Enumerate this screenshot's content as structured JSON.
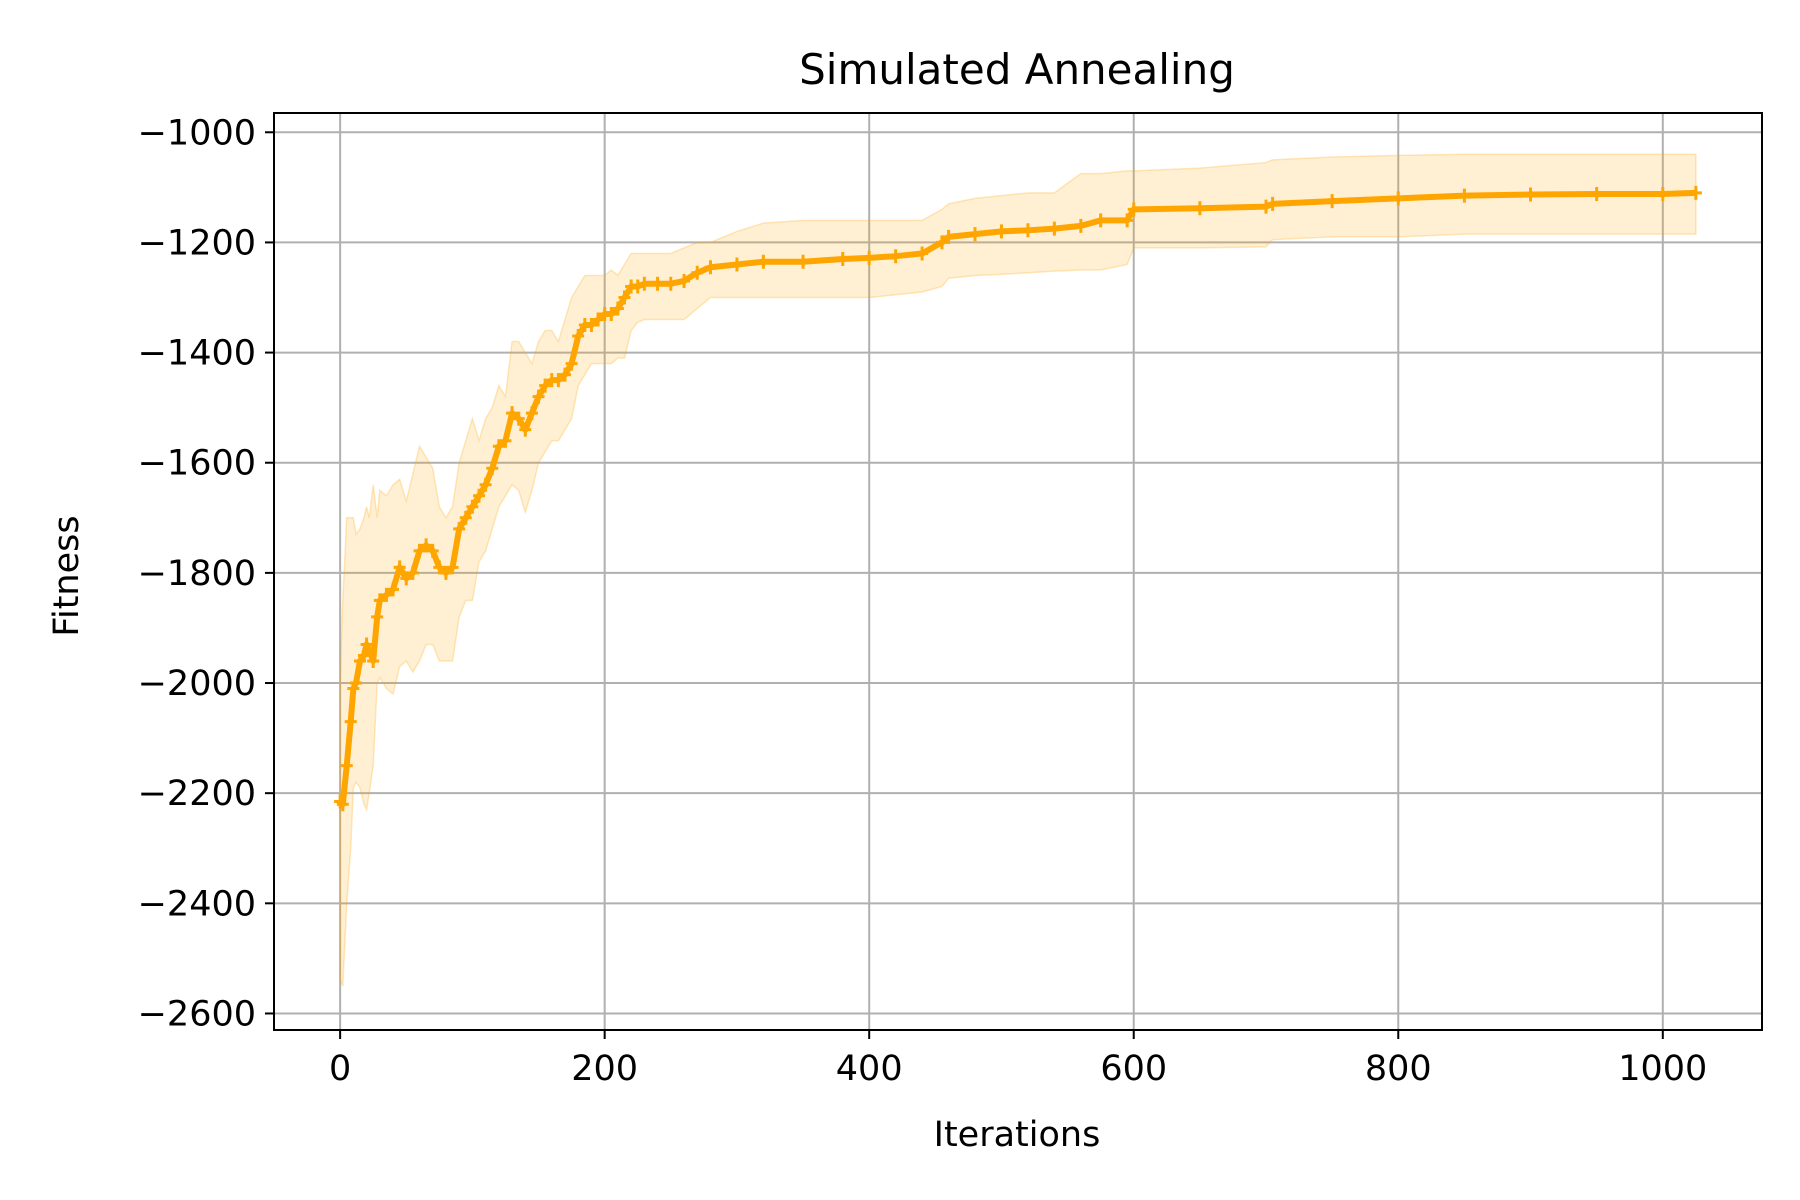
{
  "chart_data": {
    "type": "line",
    "title": "Simulated Annealing",
    "xlabel": "Iterations",
    "ylabel": "Fitness",
    "xlim": [
      -50,
      1075
    ],
    "ylim": [
      -2630,
      -965
    ],
    "xticks": [
      0,
      200,
      400,
      600,
      800,
      1000
    ],
    "yticks": [
      -2600,
      -2400,
      -2200,
      -2000,
      -1800,
      -1600,
      -1400,
      -1200,
      -1000
    ],
    "xtick_labels": [
      "0",
      "200",
      "400",
      "600",
      "800",
      "1000"
    ],
    "ytick_labels": [
      "−2600",
      "−2400",
      "−2200",
      "−2000",
      "−1800",
      "−1600",
      "−1400",
      "−1200",
      "−1000"
    ],
    "grid": true,
    "colors": {
      "line": "#ffa500",
      "band": "#ffa500",
      "grid": "#b0b0b0",
      "axes": "#000000"
    },
    "band_opacity": 0.17,
    "series": [
      {
        "x": [
          0,
          2,
          5,
          8,
          10,
          12,
          15,
          18,
          20,
          22,
          25,
          28,
          30,
          35,
          40,
          45,
          50,
          55,
          60,
          65,
          70,
          75,
          80,
          85,
          90,
          95,
          100,
          105,
          110,
          115,
          120,
          125,
          130,
          135,
          140,
          145,
          150,
          155,
          160,
          165,
          170,
          175,
          180,
          185,
          190,
          195,
          200,
          205,
          210,
          215,
          220,
          225,
          230,
          240,
          250,
          260,
          270,
          280,
          300,
          320,
          350,
          380,
          400,
          420,
          440,
          455,
          460,
          480,
          500,
          520,
          540,
          560,
          575,
          595,
          600,
          650,
          700,
          705,
          750,
          800,
          850,
          900,
          950,
          1000,
          1025
        ],
        "mean": [
          -2215,
          -2220,
          -2150,
          -2070,
          -2010,
          -2000,
          -1960,
          -1950,
          -1930,
          -1940,
          -1960,
          -1880,
          -1850,
          -1840,
          -1830,
          -1790,
          -1810,
          -1800,
          -1760,
          -1750,
          -1760,
          -1790,
          -1800,
          -1790,
          -1720,
          -1700,
          -1680,
          -1660,
          -1640,
          -1610,
          -1570,
          -1560,
          -1510,
          -1520,
          -1540,
          -1510,
          -1480,
          -1460,
          -1450,
          -1450,
          -1440,
          -1420,
          -1370,
          -1350,
          -1350,
          -1340,
          -1330,
          -1330,
          -1320,
          -1300,
          -1280,
          -1280,
          -1275,
          -1275,
          -1275,
          -1270,
          -1255,
          -1245,
          -1240,
          -1235,
          -1235,
          -1230,
          -1228,
          -1225,
          -1220,
          -1200,
          -1190,
          -1185,
          -1180,
          -1178,
          -1175,
          -1170,
          -1160,
          -1160,
          -1140,
          -1138,
          -1135,
          -1130,
          -1125,
          -1120,
          -1115,
          -1113,
          -1112,
          -1112,
          -1110
        ],
        "upper": [
          -2000,
          -1850,
          -1700,
          -1700,
          -1700,
          -1730,
          -1720,
          -1700,
          -1680,
          -1700,
          -1640,
          -1700,
          -1650,
          -1660,
          -1640,
          -1630,
          -1670,
          -1620,
          -1570,
          -1590,
          -1610,
          -1680,
          -1700,
          -1680,
          -1600,
          -1560,
          -1520,
          -1560,
          -1520,
          -1500,
          -1460,
          -1480,
          -1380,
          -1380,
          -1400,
          -1420,
          -1380,
          -1360,
          -1360,
          -1380,
          -1340,
          -1300,
          -1280,
          -1260,
          -1260,
          -1260,
          -1260,
          -1250,
          -1260,
          -1240,
          -1220,
          -1220,
          -1220,
          -1220,
          -1220,
          -1210,
          -1200,
          -1200,
          -1180,
          -1165,
          -1160,
          -1160,
          -1160,
          -1160,
          -1160,
          -1140,
          -1130,
          -1120,
          -1115,
          -1110,
          -1110,
          -1075,
          -1075,
          -1070,
          -1070,
          -1065,
          -1055,
          -1050,
          -1045,
          -1042,
          -1040,
          -1040,
          -1040,
          -1040,
          -1040
        ],
        "lower": [
          -2540,
          -2550,
          -2400,
          -2300,
          -2190,
          -2180,
          -2190,
          -2220,
          -2230,
          -2200,
          -2150,
          -2000,
          -1990,
          -2010,
          -2020,
          -1970,
          -1960,
          -1980,
          -1960,
          -1930,
          -1930,
          -1960,
          -1960,
          -1960,
          -1880,
          -1850,
          -1850,
          -1780,
          -1760,
          -1720,
          -1680,
          -1660,
          -1640,
          -1650,
          -1690,
          -1650,
          -1600,
          -1580,
          -1560,
          -1560,
          -1540,
          -1520,
          -1460,
          -1440,
          -1420,
          -1420,
          -1420,
          -1420,
          -1410,
          -1410,
          -1360,
          -1345,
          -1340,
          -1340,
          -1340,
          -1340,
          -1320,
          -1300,
          -1300,
          -1300,
          -1300,
          -1300,
          -1300,
          -1295,
          -1290,
          -1280,
          -1265,
          -1260,
          -1258,
          -1255,
          -1252,
          -1250,
          -1250,
          -1240,
          -1210,
          -1210,
          -1208,
          -1195,
          -1190,
          -1190,
          -1185,
          -1185,
          -1185,
          -1185,
          -1185
        ]
      }
    ]
  }
}
